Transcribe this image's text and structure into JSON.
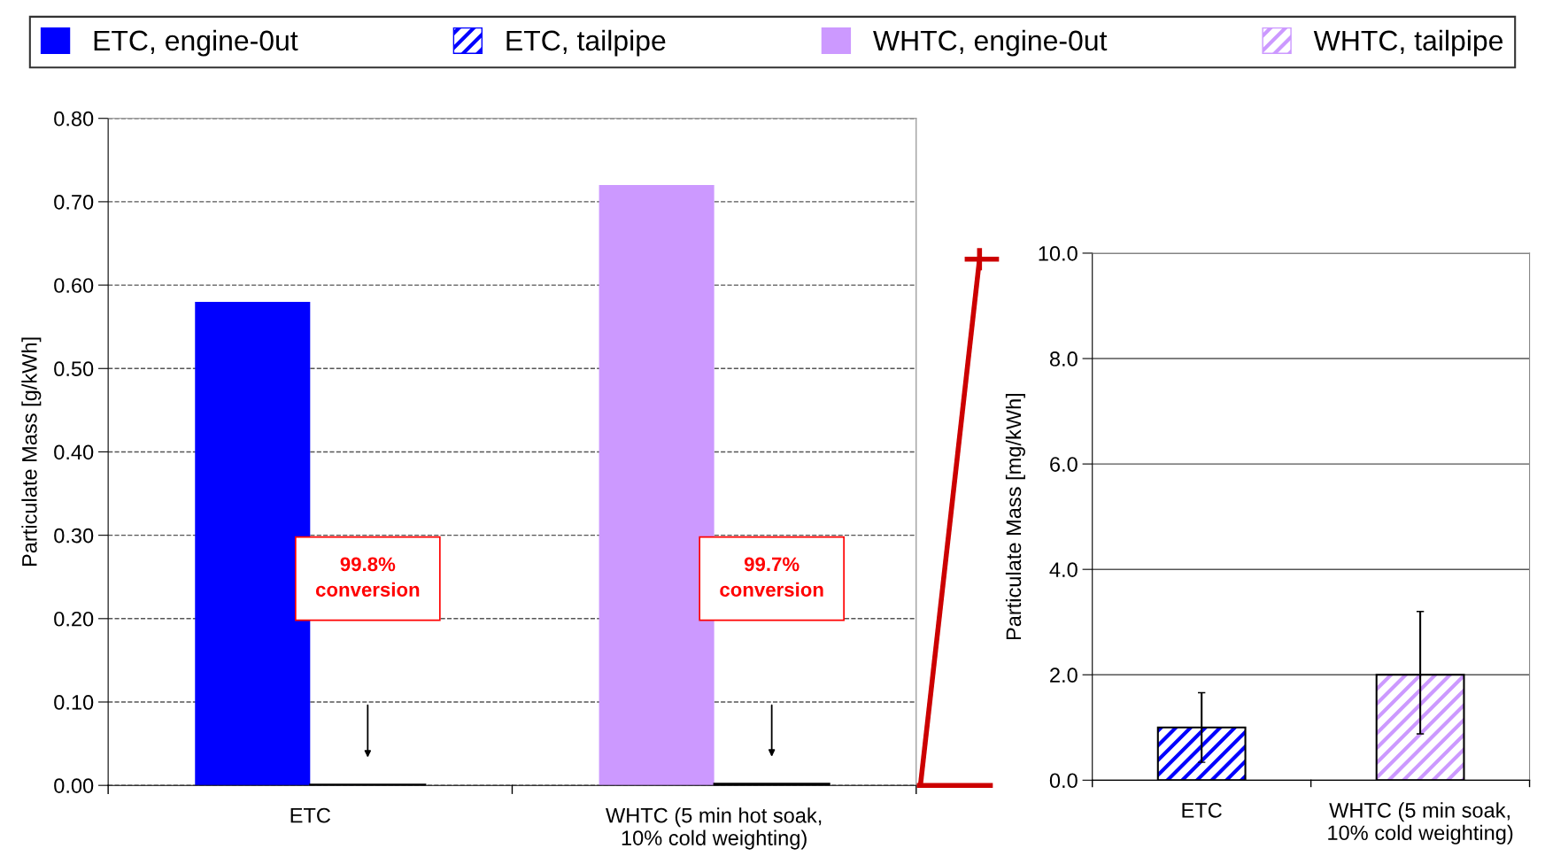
{
  "chart_data": [
    {
      "type": "bar",
      "ylabel": "Particulate Mass [g/kWh]",
      "categories": [
        "ETC",
        "WHTC (5 min hot soak,\n10% cold weighting)"
      ],
      "ylim": [
        0,
        0.8
      ],
      "yticks": [
        {
          "value": 0,
          "label": "0.00"
        },
        {
          "value": 0.1,
          "label": "0.10"
        },
        {
          "value": 0.2,
          "label": "0.20"
        },
        {
          "value": 0.3,
          "label": "0.30"
        },
        {
          "value": 0.4,
          "label": "0.40"
        },
        {
          "value": 0.5,
          "label": "0.50"
        },
        {
          "value": 0.6,
          "label": "0.60"
        },
        {
          "value": 0.7,
          "label": "0.70"
        },
        {
          "value": 0.8,
          "label": "0.80"
        }
      ],
      "grid": "y",
      "legend": "top",
      "series": [
        {
          "name": "ETC, engine-0ut",
          "color": "#0000ff",
          "values": [
            0.58,
            null
          ]
        },
        {
          "name": "ETC, tailpipe",
          "color": "#0000ff",
          "values": [
            0.001,
            null
          ]
        },
        {
          "name": "WHTC, engine-0ut",
          "color": "#cc99ff",
          "values": [
            null,
            0.72
          ]
        },
        {
          "name": "WHTC, tailpipe",
          "color": "#cc99ff",
          "values": [
            null,
            0.002
          ]
        }
      ],
      "annotations": [
        "99.8%\nconversion",
        "99.7%\nconversion"
      ]
    },
    {
      "type": "bar",
      "ylabel": "Particulate Mass [mg/kWh]",
      "categories": [
        "ETC",
        "WHTC (5 min soak,\n10% cold weighting)"
      ],
      "ylim": [
        0,
        10
      ],
      "yticks": [
        {
          "value": 0,
          "label": "0.0"
        },
        {
          "value": 2,
          "label": "2.0"
        },
        {
          "value": 4,
          "label": "4.0"
        },
        {
          "value": 6,
          "label": "6.0"
        },
        {
          "value": 8,
          "label": "8.0"
        },
        {
          "value": 10,
          "label": "10.0"
        }
      ],
      "grid": "y",
      "series": [
        {
          "color": "#0000ff",
          "values": [
            1.0,
            null
          ],
          "errors": [
            [
              0.34,
              1.66
            ],
            null
          ]
        },
        {
          "color": "#cc99ff",
          "values": [
            null,
            2.0
          ],
          "errors": [
            null,
            [
              0.88,
              3.2
            ]
          ]
        }
      ]
    }
  ]
}
